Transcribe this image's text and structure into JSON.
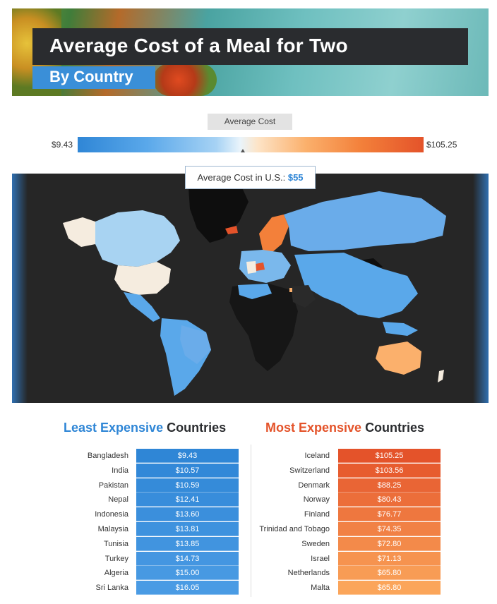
{
  "header": {
    "title": "Average Cost of a Meal for Two",
    "subtitle": "By Country"
  },
  "legend": {
    "label": "Average Cost",
    "min": "$9.43",
    "max": "$105.25"
  },
  "map": {
    "us_callout_label": "Average Cost in U.S.:",
    "us_callout_value": "$55"
  },
  "colors": {
    "low": "#2f86d6",
    "mid": "#eef6fb",
    "high": "#e4532a",
    "map_background": "#262626"
  },
  "chart_data": [
    {
      "type": "table",
      "title_part1": "Least Expensive",
      "title_part2": "Countries",
      "categories": [
        "Bangladesh",
        "India",
        "Pakistan",
        "Nepal",
        "Indonesia",
        "Malaysia",
        "Tunisia",
        "Turkey",
        "Algeria",
        "Sri Lanka"
      ],
      "values": [
        9.43,
        10.57,
        10.59,
        12.41,
        13.6,
        13.81,
        13.85,
        14.73,
        15.0,
        16.05
      ],
      "labels": [
        "$9.43",
        "$10.57",
        "$10.59",
        "$12.41",
        "$13.60",
        "$13.81",
        "$13.85",
        "$14.73",
        "$15.00",
        "$16.05"
      ]
    },
    {
      "type": "table",
      "title_part1": "Most Expensive",
      "title_part2": "Countries",
      "categories": [
        "Iceland",
        "Switzerland",
        "Denmark",
        "Norway",
        "Finland",
        "Trinidad and Tobago",
        "Sweden",
        "Israel",
        "Netherlands",
        "Malta"
      ],
      "values": [
        105.25,
        103.56,
        88.25,
        80.43,
        76.77,
        74.35,
        72.8,
        71.13,
        65.8,
        65.8
      ],
      "labels": [
        "$105.25",
        "$103.56",
        "$88.25",
        "$80.43",
        "$76.77",
        "$74.35",
        "$72.80",
        "$71.13",
        "$65.80",
        "$65.80"
      ]
    }
  ]
}
